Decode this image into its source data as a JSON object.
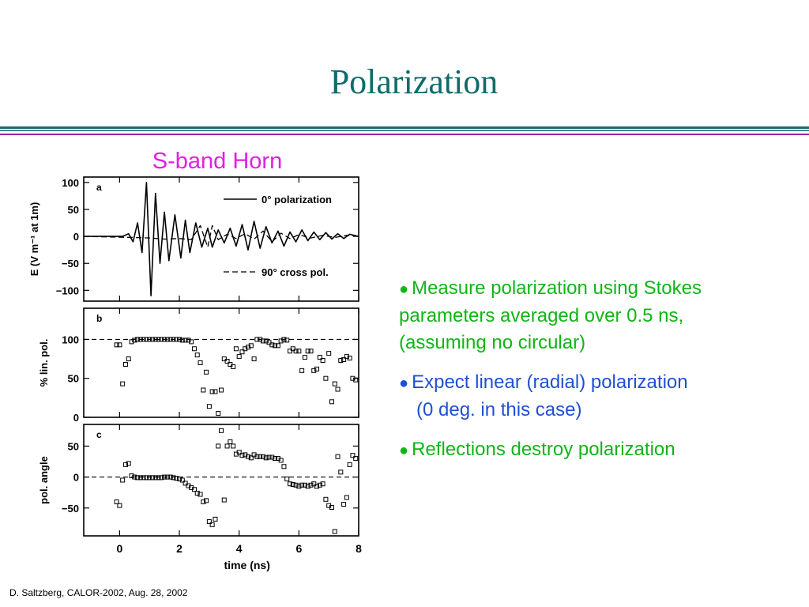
{
  "slide": {
    "title": "Polarization",
    "subtitle": "S-band Horn",
    "footer": "D. Saltzberg, CALOR-2002, Aug. 28, 2002",
    "bullets": {
      "b1_line1": "Measure polarization using Stokes",
      "b1_line2": "parameters averaged over 0.5 ns,",
      "b1_line3": "(assuming no circular)",
      "b2_line1": "Expect linear (radial) polarization",
      "b2_line2": "(0 deg. in this case)",
      "b3_line1": "Reflections destroy polarization"
    },
    "bullet_glyph": "●",
    "colors": {
      "title": "#0f6b6b",
      "subtitle": "#e11ee6",
      "green": "#10b516",
      "blue": "#1f4fd6",
      "rule_teal": "#1f6b6b",
      "rule_purple": "#a020a0"
    }
  },
  "chart_data": [
    {
      "type": "line",
      "panel_label": "a",
      "ylabel": "E (V m⁻¹ at 1m)",
      "xlim": [
        -1.2,
        8.0
      ],
      "ylim": [
        -120,
        110
      ],
      "yticks": [
        100,
        50,
        0,
        -50,
        -100
      ],
      "ytick_labels": [
        "100",
        "50",
        "0",
        "−50",
        "−100"
      ],
      "legend": [
        "0° polarization",
        "90° cross pol."
      ],
      "series": [
        {
          "name": "0° polarization",
          "x": [
            -1.2,
            0.1,
            0.3,
            0.45,
            0.6,
            0.75,
            0.9,
            1.05,
            1.2,
            1.35,
            1.5,
            1.65,
            1.85,
            2.05,
            2.2,
            2.35,
            2.55,
            2.75,
            2.95,
            3.1,
            3.3,
            3.5,
            3.7,
            3.9,
            4.1,
            4.3,
            4.5,
            4.7,
            4.9,
            5.1,
            5.3,
            5.5,
            5.7,
            5.9,
            6.1,
            6.3,
            6.5,
            6.7,
            6.9,
            7.1,
            7.3,
            7.5,
            7.7,
            8.0
          ],
          "y": [
            0,
            0,
            5,
            -10,
            25,
            -30,
            100,
            -110,
            80,
            -50,
            45,
            -45,
            40,
            -40,
            30,
            -30,
            25,
            -20,
            15,
            -20,
            12,
            -12,
            15,
            -18,
            22,
            -25,
            28,
            -22,
            18,
            -12,
            10,
            -18,
            8,
            -10,
            12,
            -8,
            8,
            -6,
            7,
            -5,
            5,
            -4,
            4,
            0
          ]
        },
        {
          "name": "90° cross pol.",
          "x": [
            -1.2,
            0.5,
            1.0,
            1.5,
            2.0,
            2.4,
            2.7,
            2.95,
            3.1,
            3.3,
            3.6,
            3.9,
            4.2,
            4.5,
            4.8,
            5.1,
            5.4,
            5.7,
            6.0,
            6.4,
            6.8,
            7.2,
            7.6,
            8.0
          ],
          "y": [
            0,
            -2,
            -3,
            -5,
            -4,
            -6,
            20,
            -20,
            20,
            -6,
            4,
            -4,
            5,
            -5,
            10,
            -10,
            6,
            -4,
            3,
            -3,
            2,
            -2,
            2,
            0
          ]
        }
      ]
    },
    {
      "type": "scatter",
      "panel_label": "b",
      "ylabel": "% lin. pol.",
      "xlim": [
        -1.2,
        8.0
      ],
      "ylim": [
        0,
        140
      ],
      "yticks": [
        100,
        50,
        0
      ],
      "ytick_labels": [
        "100",
        "50",
        "0"
      ],
      "reference_line_y": 100,
      "series": [
        {
          "name": "",
          "x": [
            -0.1,
            0.0,
            0.1,
            0.2,
            0.3,
            0.4,
            0.5,
            0.6,
            0.7,
            0.8,
            0.9,
            1.0,
            1.1,
            1.2,
            1.3,
            1.4,
            1.5,
            1.6,
            1.7,
            1.8,
            1.9,
            2.0,
            2.1,
            2.2,
            2.3,
            2.4,
            2.5,
            2.6,
            2.7,
            2.8,
            2.9,
            3.0,
            3.1,
            3.2,
            3.3,
            3.4,
            3.5,
            3.6,
            3.7,
            3.8,
            3.9,
            4.0,
            4.1,
            4.2,
            4.3,
            4.4,
            4.5,
            4.6,
            4.7,
            4.8,
            4.9,
            5.0,
            5.1,
            5.2,
            5.3,
            5.4,
            5.5,
            5.6,
            5.7,
            5.8,
            5.9,
            6.0,
            6.1,
            6.2,
            6.3,
            6.4,
            6.5,
            6.6,
            6.7,
            6.8,
            6.9,
            7.0,
            7.1,
            7.2,
            7.3,
            7.4,
            7.5,
            7.6,
            7.7,
            7.8,
            7.9
          ],
          "y": [
            93,
            93,
            43,
            68,
            75,
            97,
            99,
            100,
            100,
            100,
            100,
            100,
            100,
            100,
            100,
            100,
            100,
            100,
            100,
            100,
            100,
            100,
            99,
            99,
            99,
            97,
            88,
            80,
            70,
            35,
            58,
            14,
            33,
            33,
            5,
            35,
            75,
            72,
            68,
            65,
            88,
            78,
            84,
            88,
            90,
            92,
            75,
            100,
            100,
            98,
            98,
            96,
            93,
            92,
            92,
            98,
            100,
            99,
            85,
            88,
            85,
            85,
            60,
            77,
            85,
            85,
            60,
            62,
            77,
            73,
            50,
            82,
            20,
            43,
            36,
            73,
            74,
            78,
            76,
            50,
            48
          ]
        }
      ]
    },
    {
      "type": "scatter",
      "panel_label": "c",
      "ylabel": "pol. angle",
      "xlim": [
        -1.2,
        8.0
      ],
      "ylim": [
        -95,
        85
      ],
      "yticks": [
        50,
        0,
        -50
      ],
      "ytick_labels": [
        "50",
        "0",
        "−50"
      ],
      "xticks": [
        0,
        2,
        4,
        6,
        8
      ],
      "xtick_labels": [
        "0",
        "2",
        "4",
        "6",
        "8"
      ],
      "xlabel": "time (ns)",
      "reference_line_y": 0,
      "series": [
        {
          "name": "",
          "x": [
            -0.1,
            0.0,
            0.1,
            0.2,
            0.3,
            0.4,
            0.5,
            0.6,
            0.7,
            0.8,
            0.9,
            1.0,
            1.1,
            1.2,
            1.3,
            1.4,
            1.5,
            1.6,
            1.7,
            1.8,
            1.9,
            2.0,
            2.1,
            2.2,
            2.3,
            2.4,
            2.5,
            2.6,
            2.7,
            2.8,
            2.9,
            3.0,
            3.1,
            3.2,
            3.3,
            3.4,
            3.5,
            3.6,
            3.7,
            3.8,
            3.9,
            4.0,
            4.1,
            4.2,
            4.3,
            4.4,
            4.5,
            4.6,
            4.7,
            4.8,
            4.9,
            5.0,
            5.1,
            5.2,
            5.3,
            5.4,
            5.5,
            5.6,
            5.7,
            5.8,
            5.9,
            6.0,
            6.1,
            6.2,
            6.3,
            6.4,
            6.5,
            6.6,
            6.7,
            6.8,
            6.9,
            7.0,
            7.1,
            7.2,
            7.3,
            7.4,
            7.5,
            7.6,
            7.7,
            7.8,
            7.9
          ],
          "y": [
            -40,
            -46,
            -5,
            20,
            22,
            2,
            0,
            -1,
            -1,
            -1,
            -1,
            -1,
            -1,
            -1,
            -1,
            -1,
            0,
            0,
            0,
            -1,
            -2,
            -3,
            -5,
            -10,
            -14,
            -17,
            -20,
            -26,
            -28,
            -40,
            -38,
            -72,
            -77,
            -68,
            50,
            75,
            -37,
            50,
            57,
            50,
            37,
            40,
            35,
            36,
            33,
            31,
            36,
            33,
            33,
            33,
            31,
            32,
            32,
            30,
            30,
            27,
            17,
            -3,
            -11,
            -12,
            -13,
            -15,
            -13,
            -13,
            -15,
            -13,
            -11,
            -15,
            -13,
            -11,
            -36,
            -46,
            -49,
            -88,
            33,
            8,
            -44,
            -33,
            20,
            35,
            30
          ]
        }
      ]
    }
  ]
}
